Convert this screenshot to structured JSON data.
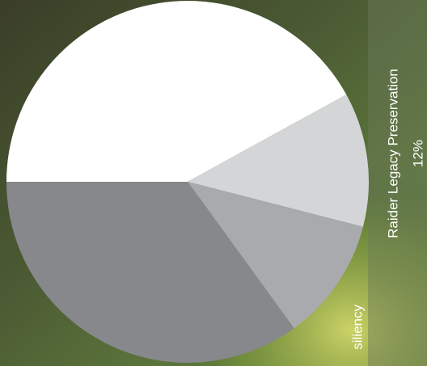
{
  "chart_data": {
    "type": "pie",
    "categories": [
      null,
      "Raider Legacy Preservation",
      "siliency",
      null
    ],
    "values": [
      42,
      12,
      11,
      35
    ],
    "value_labels": [
      null,
      "12%",
      null,
      null
    ],
    "colors": [
      "#ffffff",
      "#d4d5d7",
      "#a9aaad",
      "#87888b"
    ]
  }
}
